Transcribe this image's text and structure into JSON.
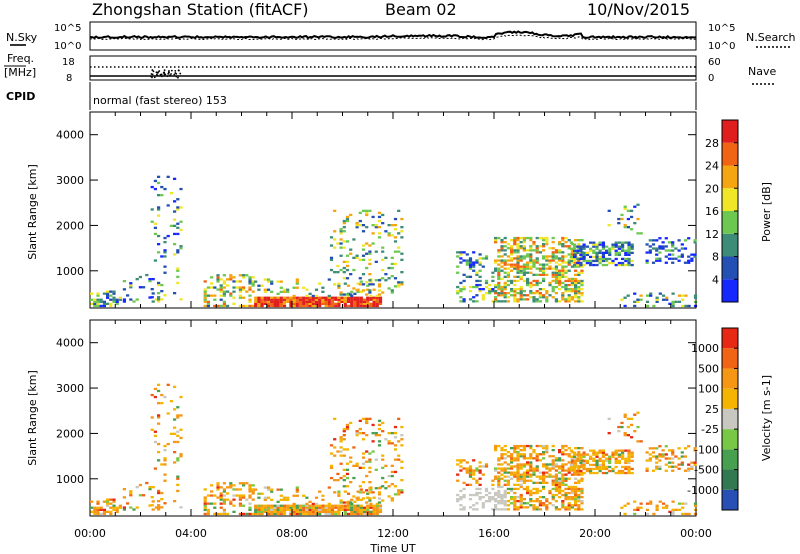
{
  "header": {
    "station": "Zhongshan Station (fitACF)",
    "beam": "Beam 02",
    "date": "10/Nov/2015"
  },
  "strip_panels": {
    "noise": {
      "left_label": "N.Sky",
      "right_label": "N.Search",
      "left_ticks": [
        "10^5",
        "10^0"
      ],
      "right_ticks": [
        "10^5",
        "10^0"
      ]
    },
    "frequency": {
      "left_label_1": "Freq.",
      "left_label_2": "[MHz]",
      "right_label": "Nave",
      "left_ticks": [
        "18",
        "8"
      ],
      "right_ticks": [
        "60",
        "0"
      ]
    },
    "cpid": {
      "label": "CPID",
      "text": "normal (fast stereo) 153"
    }
  },
  "chart_data": [
    {
      "type": "heatmap",
      "parameter": "power",
      "ylabel": "Slant Range [km]",
      "ylim": [
        180,
        4500
      ],
      "y_ticks": [
        1000,
        2000,
        3000,
        4000
      ],
      "x_ticks": [
        "00:00",
        "04:00",
        "08:00",
        "12:00",
        "16:00",
        "20:00",
        "00:00"
      ],
      "colorbar": {
        "label": "Power [dB]",
        "ticks": [
          "28",
          "24",
          "20",
          "16",
          "12",
          "8",
          "4"
        ],
        "colors": [
          "#1428ff",
          "#2450b4",
          "#3c8c78",
          "#6cc850",
          "#f0e628",
          "#f5a50f",
          "#f06414",
          "#e11e1e"
        ]
      }
    },
    {
      "type": "heatmap",
      "parameter": "velocity",
      "ylabel": "Slant Range [km]",
      "ylim": [
        180,
        4500
      ],
      "y_ticks": [
        1000,
        2000,
        3000,
        4000
      ],
      "x_ticks": [
        "00:00",
        "04:00",
        "08:00",
        "12:00",
        "16:00",
        "20:00",
        "00:00"
      ],
      "xlabel": "Time UT",
      "colorbar": {
        "label": "Velocity [m s-1]",
        "ticks": [
          "1000",
          "500",
          "100",
          "25",
          "-25",
          "-100",
          "-500",
          "-1000"
        ],
        "colors": [
          "#2850b4",
          "#327850",
          "#46a050",
          "#78c846",
          "#c8c8c0",
          "#f5b400",
          "#f59614",
          "#f06414",
          "#e62814"
        ]
      }
    }
  ]
}
